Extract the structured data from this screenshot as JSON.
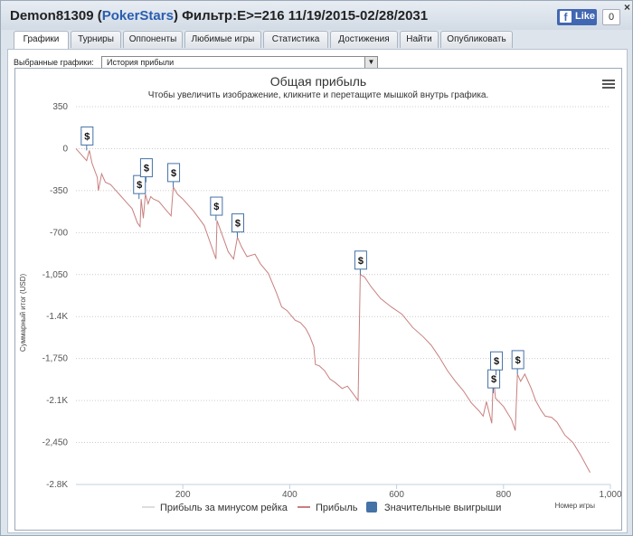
{
  "window": {
    "player": "Demon81309",
    "site": "PokerStars",
    "filter": "Фильтр:E>=216 11/19/2015-02/28/2031",
    "like_label": "Like",
    "like_count": "0",
    "close_label": "×"
  },
  "tabs": [
    "Графики",
    "Турниры",
    "Оппоненты",
    "Любимые игры",
    "Статистика",
    "Достижения",
    "Найти",
    "Опубликовать"
  ],
  "selector": {
    "label": "Выбранные графики:",
    "value": "История прибыли"
  },
  "chart_data": {
    "type": "line",
    "title": "Общая прибыль",
    "subtitle": "Чтобы увеличить изображение, кликните и перетащите мышкой внутрь графика.",
    "xlabel": "Номер игры",
    "ylabel": "Суммарный итог (USD)",
    "xlim": [
      0,
      1000
    ],
    "ylim": [
      -2800,
      350
    ],
    "x_ticks": [
      200,
      400,
      600,
      800,
      "1,000"
    ],
    "y_ticks": [
      "350",
      "0",
      "-350",
      "-700",
      "-1,050",
      "-1.4K",
      "-1,750",
      "-2.1K",
      "-2,450",
      "-2.8K"
    ],
    "legend": [
      "Прибыль за минусом рейка",
      "Прибыль",
      "Значительные выигрыши"
    ],
    "flag_label": "$",
    "grid": true,
    "series": [
      {
        "name": "Прибыль",
        "color": "#c97f7f",
        "points": [
          [
            0,
            0
          ],
          [
            10,
            -50
          ],
          [
            20,
            -100
          ],
          [
            25,
            -15
          ],
          [
            30,
            -120
          ],
          [
            40,
            -240
          ],
          [
            42,
            -350
          ],
          [
            48,
            -210
          ],
          [
            55,
            -280
          ],
          [
            65,
            -300
          ],
          [
            75,
            -350
          ],
          [
            85,
            -400
          ],
          [
            95,
            -450
          ],
          [
            105,
            -500
          ],
          [
            115,
            -620
          ],
          [
            120,
            -650
          ],
          [
            122,
            -420
          ],
          [
            126,
            -580
          ],
          [
            130,
            -380
          ],
          [
            135,
            -460
          ],
          [
            140,
            -400
          ],
          [
            145,
            -420
          ],
          [
            155,
            -440
          ],
          [
            170,
            -520
          ],
          [
            178,
            -560
          ],
          [
            182,
            -320
          ],
          [
            190,
            -380
          ],
          [
            200,
            -420
          ],
          [
            220,
            -520
          ],
          [
            240,
            -640
          ],
          [
            262,
            -920
          ],
          [
            264,
            -600
          ],
          [
            272,
            -700
          ],
          [
            285,
            -860
          ],
          [
            295,
            -920
          ],
          [
            302,
            -740
          ],
          [
            310,
            -820
          ],
          [
            320,
            -900
          ],
          [
            335,
            -880
          ],
          [
            345,
            -960
          ],
          [
            360,
            -1040
          ],
          [
            375,
            -1200
          ],
          [
            385,
            -1320
          ],
          [
            395,
            -1350
          ],
          [
            410,
            -1430
          ],
          [
            420,
            -1450
          ],
          [
            430,
            -1500
          ],
          [
            437,
            -1560
          ],
          [
            445,
            -1650
          ],
          [
            448,
            -1800
          ],
          [
            455,
            -1810
          ],
          [
            465,
            -1850
          ],
          [
            475,
            -1920
          ],
          [
            485,
            -1950
          ],
          [
            498,
            -2000
          ],
          [
            508,
            -1980
          ],
          [
            518,
            -2040
          ],
          [
            528,
            -2100
          ],
          [
            532,
            -1050
          ],
          [
            540,
            -1070
          ],
          [
            552,
            -1150
          ],
          [
            570,
            -1250
          ],
          [
            590,
            -1320
          ],
          [
            610,
            -1380
          ],
          [
            630,
            -1490
          ],
          [
            650,
            -1570
          ],
          [
            665,
            -1640
          ],
          [
            680,
            -1740
          ],
          [
            695,
            -1850
          ],
          [
            710,
            -1940
          ],
          [
            725,
            -2020
          ],
          [
            740,
            -2120
          ],
          [
            755,
            -2190
          ],
          [
            762,
            -2230
          ],
          [
            768,
            -2110
          ],
          [
            778,
            -2290
          ],
          [
            781,
            -1890
          ],
          [
            785,
            -2080
          ],
          [
            800,
            -2150
          ],
          [
            815,
            -2260
          ],
          [
            822,
            -2350
          ],
          [
            826,
            -1880
          ],
          [
            832,
            -1940
          ],
          [
            840,
            -1880
          ],
          [
            852,
            -2000
          ],
          [
            860,
            -2100
          ],
          [
            870,
            -2180
          ],
          [
            878,
            -2230
          ],
          [
            890,
            -2240
          ],
          [
            900,
            -2280
          ],
          [
            915,
            -2390
          ],
          [
            930,
            -2450
          ],
          [
            945,
            -2560
          ],
          [
            957,
            -2660
          ],
          [
            962,
            -2700
          ]
        ]
      }
    ],
    "big_wins": [
      [
        20,
        -15
      ],
      [
        118,
        -420
      ],
      [
        131,
        -280
      ],
      [
        182,
        -320
      ],
      [
        262,
        -600
      ],
      [
        302,
        -740
      ],
      [
        532,
        -1050
      ],
      [
        781,
        -2040
      ],
      [
        786,
        -1890
      ],
      [
        826,
        -1880
      ]
    ]
  }
}
